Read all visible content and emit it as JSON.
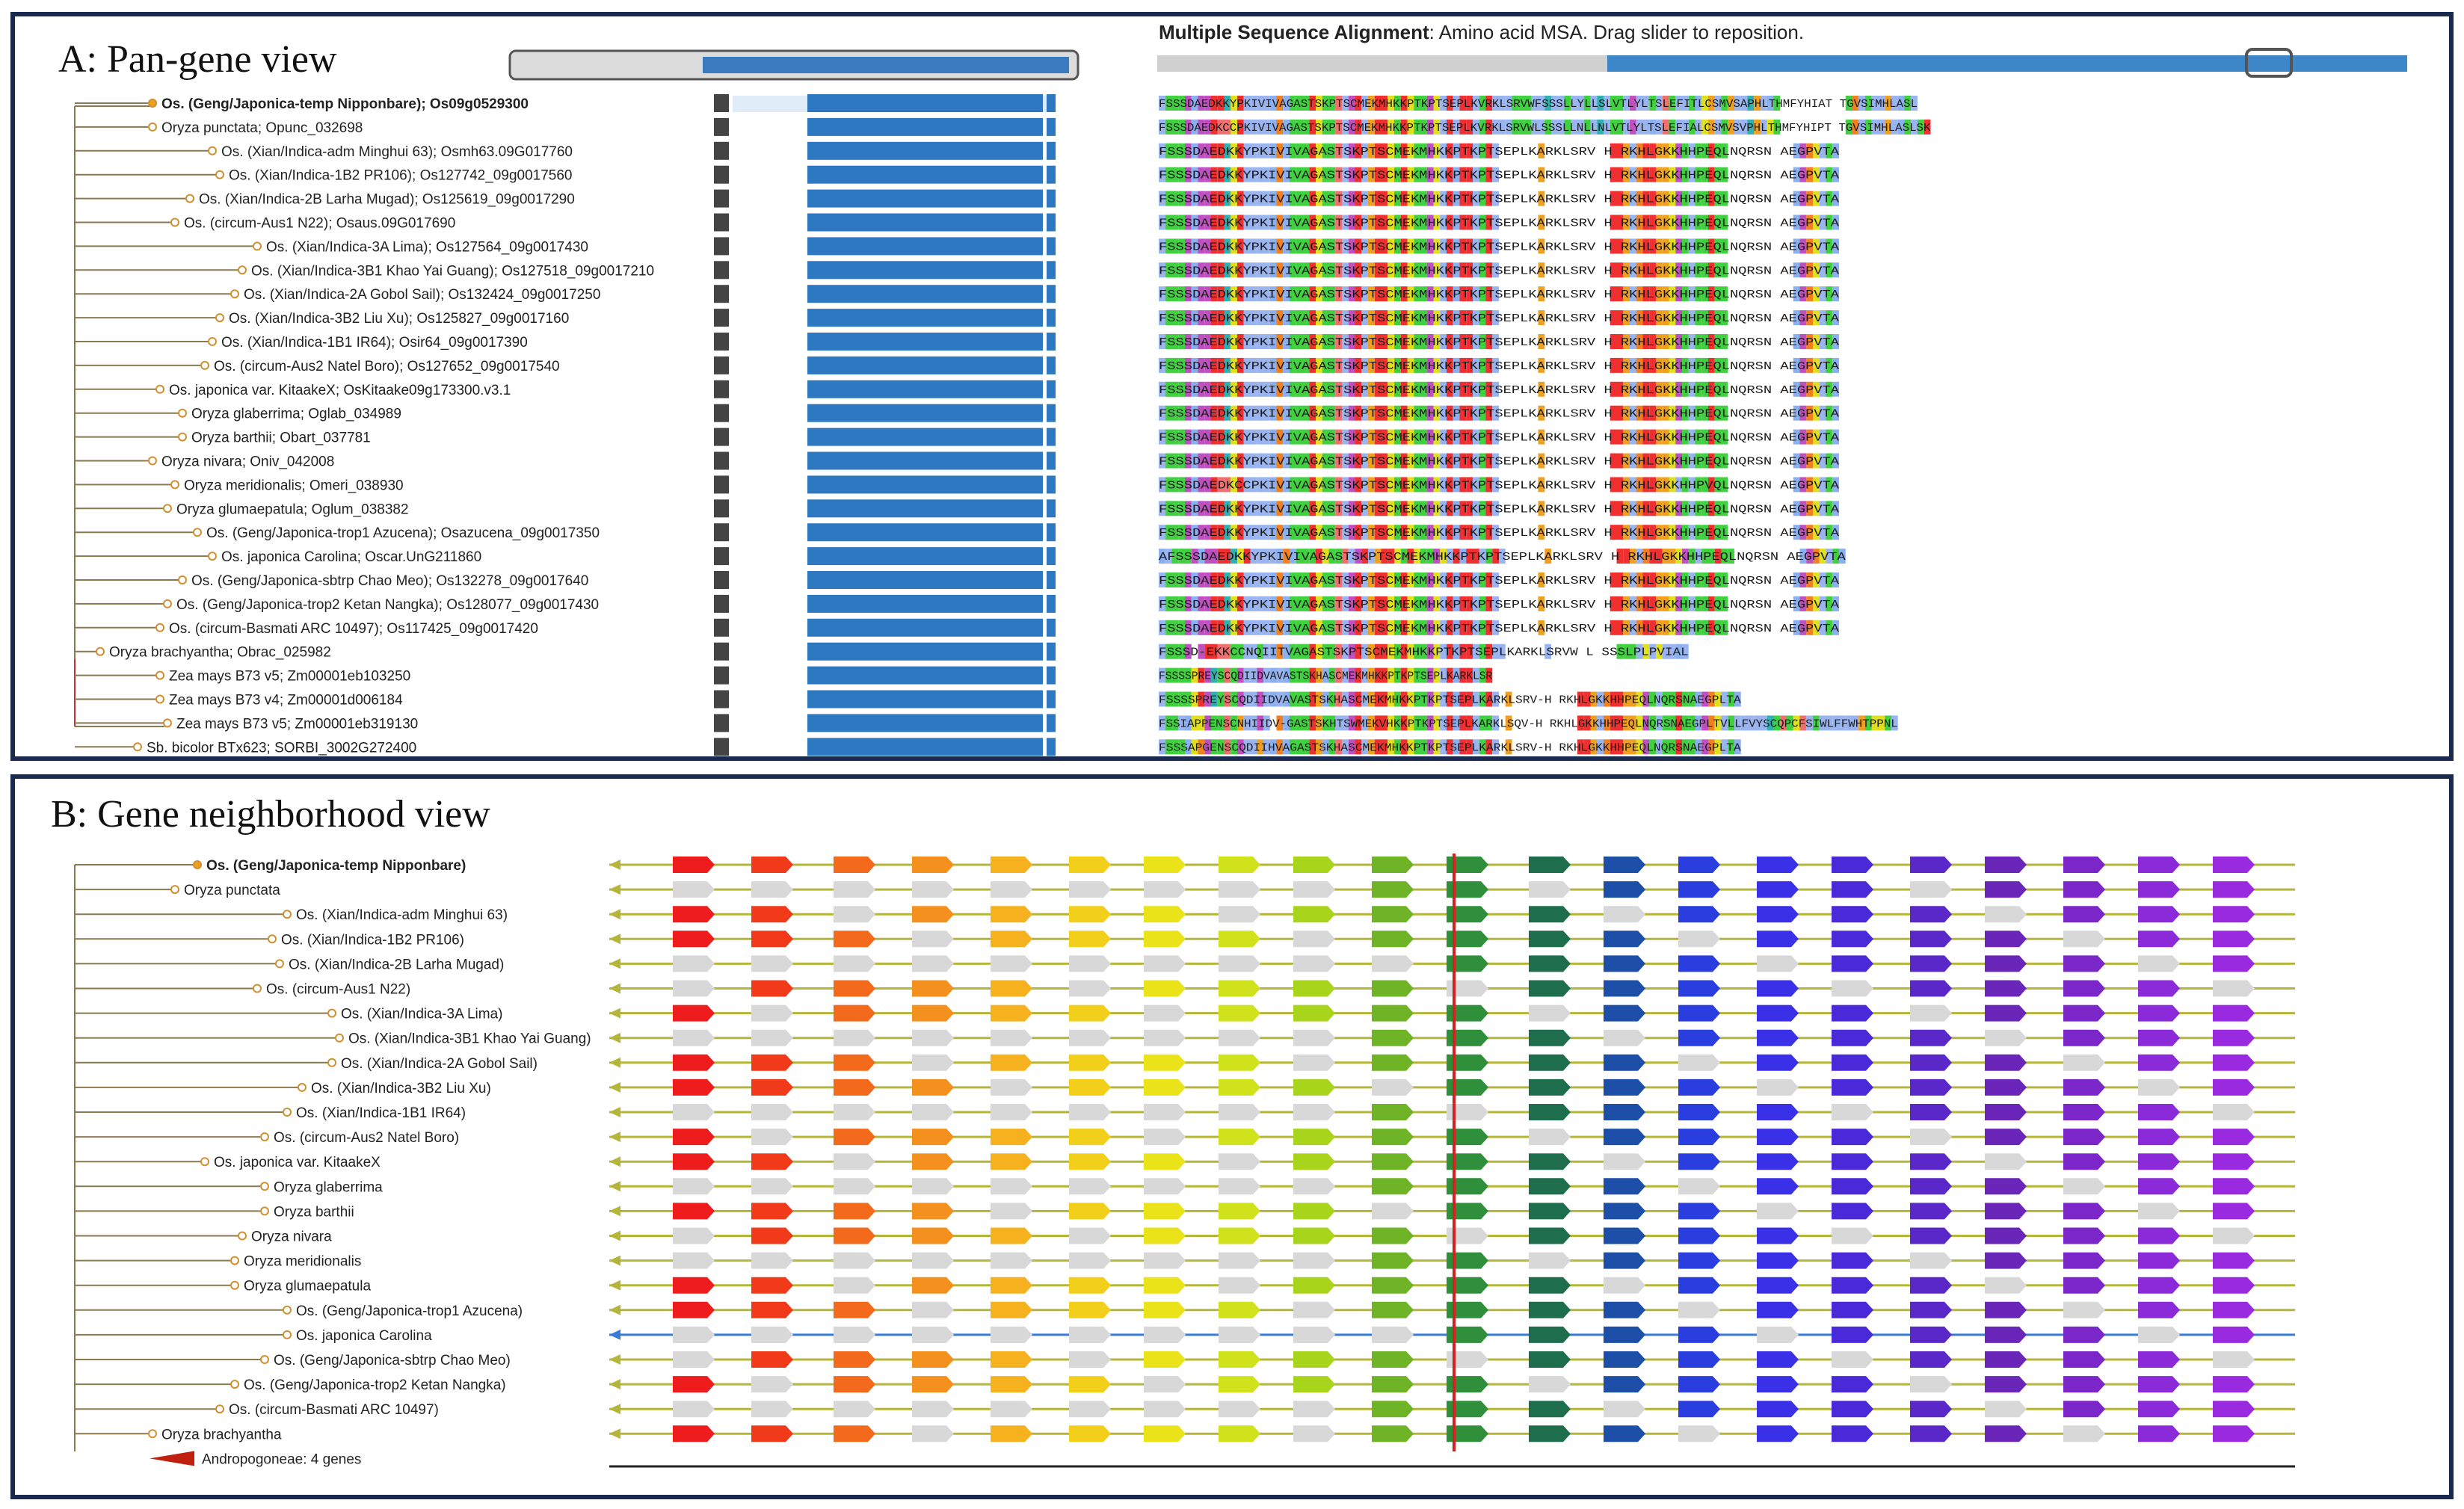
{
  "panel_a": {
    "title": "A: Pan-gene view",
    "msa_title": "Multiple Sequence Alignment",
    "msa_subtitle": ": Amino acid MSA. Drag slider to reposition.",
    "leaves": [
      "Os. (Geng/Japonica-temp Nipponbare); Os09g0529300",
      "Oryza punctata; Opunc_032698",
      "Os. (Xian/Indica-adm Minghui 63); Osmh63.09G017760",
      "Os. (Xian/Indica-1B2 PR106); Os127742_09g0017560",
      "Os. (Xian/Indica-2B Larha Mugad); Os125619_09g0017290",
      "Os. (circum-Aus1 N22); Osaus.09G017690",
      "Os. (Xian/Indica-3A Lima); Os127564_09g0017430",
      "Os. (Xian/Indica-3B1 Khao Yai Guang); Os127518_09g0017210",
      "Os. (Xian/Indica-2A Gobol Sail); Os132424_09g0017250",
      "Os. (Xian/Indica-3B2 Liu Xu); Os125827_09g0017160",
      "Os. (Xian/Indica-1B1 IR64); Osir64_09g0017390",
      "Os. (circum-Aus2 Natel Boro); Os127652_09g0017540",
      "Os. japonica var. KitaakeX; OsKitaake09g173300.v3.1",
      "Oryza glaberrima; Oglab_034989",
      "Oryza barthii; Obart_037781",
      "Oryza nivara; Oniv_042008",
      "Oryza meridionalis; Omeri_038930",
      "Oryza glumaepatula; Oglum_038382",
      "Os. (Geng/Japonica-trop1 Azucena); Osazucena_09g0017350",
      "Os. japonica Carolina; Oscar.UnG211860",
      "Os. (Geng/Japonica-sbtrp Chao Meo); Os132278_09g0017640",
      "Os. (Geng/Japonica-trop2 Ketan Nangka); Os128077_09g0017430",
      "Os. (circum-Basmati ARC 10497); Os117425_09g0017420",
      "Oryza brachyantha; Obrac_025982",
      "Zea mays B73 v5; Zm00001eb103250",
      "Zea mays B73 v4; Zm00001d006184",
      "Zea mays B73 v5; Zm00001eb319130",
      "Sb. bicolor BTx623; SORBI_3002G272400"
    ],
    "msa_rows": [
      "FSSSDAEDKKYPKIVIVAGASTSKPTSCMEKMHKKPTKPTSEPLKVRKLSRVWFSSSLLYLLSLVTLYLTSLEFITLCSMVSAPHLTHMFYHIAT          TGVSIMHLASL",
      "FSSSDAEDKCCPKIVIVAGASTSKPTSCMEKMHKKPTKPTSEPLKVRKLSRVWLSSSLLNLLNLVTLYLTSLEFIALCSMVSVPHLTHMFYHIPT          TGVSIMHLASLSK",
      "FSSSDAEDKKYPKIVIVAGASTSKPTSCMEKMHKKPTKPTSEPLKARKLSRV      H          RKHLGKKHHPEQLNQRSN          AEGPVTA",
      "FSSSDAEDKKYPKIVIVAGASTSKPTSCMEKMHKKPTKPTSEPLKARKLSRV      H          RKHLGKKHHPEQLNQRSN          AEGPVTA",
      "FSSSDAEDKKYPKIVIVAGASTSKPTSCMEKMHKKPTKPTSEPLKARKLSRV      H          RKHLGKKHHPEQLNQRSN          AEGPVTA",
      "FSSSDAEDKKYPKIVIVAGASTSKPTSCMEKMHKKPTKPTSEPLKARKLSRV      H          RKHLGKKHHPEQLNQRSN          AEGPVTA",
      "FSSSDAEDKKYPKIVIVAGASTSKPTSCMEKMHKKPTKPTSEPLKARKLSRV      H          RKHLGKKHHPEQLNQRSN          AEGPVTA",
      "FSSSDAEDKKYPKIVIVAGASTSKPTSCMEKMHKKPTKPTSEPLKARKLSRV      H          RKHLGKKHHPEQLNQRSN          AEGPVTA",
      "FSSSDAEDKKYPKIVIVAGASTSKPTSCMEKMHKKPTKPTSEPLKARKLSRV      H          RKHLGKKHHPEQLNQRSN          AEGPVTA",
      "FSSSDAEDKKYPKIVIVAGASTSKPTSCMEKMHKKPTKPTSEPLKARKLSRV      H          RKHLGKKHHPEQLNQRSN          AEGPVTA",
      "FSSSDAEDKKYPKIVIVAGASTSKPTSCMEKMHKKPTKPTSEPLKARKLSRV      H          RKHLGKKHHPEQLNQRSN          AEGPVTA",
      "FSSSDAEDKKYPKIVIVAGASTSKPTSCMEKMHKKPTKPTSEPLKARKLSRV      H          RKHLGKKHHPEQLNQRSN          AEGPVTA",
      "FSSSDAEDKKYPKIVIVAGASTSKPTSCMEKMHKKPTKPTSEPLKARKLSRV      H          RKHLGKKHHPEQLNQRSN          AEGPVTA",
      "FSSSDAEDKKYPKIVIVAGASTSKPTSCMEKMHKKPTKPTSEPLKARKLSRV      H          RKHLGKKHHPEQLNQRSN          AEGPVTA",
      "FSSSDAEDKKYPKIVIVAGASTSKPTSCMEKMHKKPTKPTSEPLKARKLSRV      H          RKHLGKKHHPEQLNQRSN          AEGPVTA",
      "FSSSDAEDKKYPKIVIVAGASTSKPTSCMEKMHKKPTKPTSEPLKARKLSRV      H          RKHLGKKHHPEQLNQRSN          AEGPVTA",
      "FSSSDAEDKCCPKIVIVAGASTSKPTSCMEKMHKKPTKPTSEPLKARKLSRV      H          RKHLGKKHHPVQLNQRSN          AEGPVTA",
      "FSSSDAEDKKYPKIVIVAGASTSKPTSCMEKMHKKPTKPTSEPLKARKLSRV      H          RKHLGKKHHPEQLNQRSN          AEGPVTA",
      "FSSSDAEDKKYPKIVIVAGASTSKPTSCMEKMHKKPTKPTSEPLKARKLSRV      H          RKHLGKKHHPEQLNQRSN          AEGPVTA",
      "AFSSSDAEDKKYPKIVIVAGASTSKPTSCMEKMHKKPTKPTSEPLKARKLSRV      H          RKHLGKKHHPEQLNQRSN          AEGPVTA",
      "FSSSDAEDKKYPKIVIVAGASTSKPTSCMEKMHKKPTKPTSEPLKARKLSRV      H          RKHLGKKHHPEQLNQRSN          AEGPVTA",
      "FSSSDAEDKKYPKIVIVAGASTSKPTSCMEKMHKKPTKPTSEPLKARKLSRV      H          RKHLGKKHHPEQLNQRSN          AEGPVTA",
      "FSSSDAEDKKYPKIVIVAGASTSKPTSCMEKMHKKPTKPTSEPLKARKLSRV      H          RKHLGKKHHPEQLNQRSN          AEGPVTA",
      "FSSSD-EKKCCNQIITVAGASTSKPTSCMEKMHKKPTKPTSEPLKARKLSRVW      L          SSSLPLPVIAL",
      "FSSSSPREYSCQDIIDVAVASTSKHASCMEKMHKKPTKPTSEPLKARKLSR",
      "FSSSSPREYSCQDIIDVAVASTSKHASCMEKMHKKPTKPTSEPLKARKLSRV-H          RKHLGKKHHPEQLNQRSNAEGPLTA",
      "FSSIAPPENSCNHIIDV-GASTSKHTSWMEKVHKKPTKPTSEPLKARKLSQV-H          RKHLGKKHHPEQLNQRSNAEGPLTVLLFVYSCQPCFSIWLFFWHTPPNL",
      "FSSSAPGENSCQDIIHVAGASTSKHASCMEKMHKKPTKPTSEPLKARKLSRV-H          RKHLGKKHHPEQLNQRSNAEGPLTA"
    ]
  },
  "panel_b": {
    "title": "B: Gene neighborhood view",
    "leaves": [
      "Os. (Geng/Japonica-temp Nipponbare)",
      "Oryza punctata",
      "Os. (Xian/Indica-adm Minghui 63)",
      "Os. (Xian/Indica-1B2 PR106)",
      "Os. (Xian/Indica-2B Larha Mugad)",
      "Os. (circum-Aus1 N22)",
      "Os. (Xian/Indica-3A Lima)",
      "Os. (Xian/Indica-3B1 Khao Yai Guang)",
      "Os. (Xian/Indica-2A Gobol Sail)",
      "Os. (Xian/Indica-3B2 Liu Xu)",
      "Os. (Xian/Indica-1B1 IR64)",
      "Os. (circum-Aus2 Natel Boro)",
      "Os. japonica var. KitaakeX",
      "Oryza glaberrima",
      "Oryza barthii",
      "Oryza nivara",
      "Oryza meridionalis",
      "Oryza glumaepatula",
      "Os. (Geng/Japonica-trop1 Azucena)",
      "Os. japonica Carolina",
      "Os. (Geng/Japonica-sbtrp Chao Meo)",
      "Os. (Geng/Japonica-trop2 Ketan Nangka)",
      "Os. (circum-Basmati ARC 10497)",
      "Oryza brachyantha",
      "Andropogoneae: 4 genes"
    ],
    "gene_colors": [
      "#ee1c1c",
      "#f03a1a",
      "#f36a1c",
      "#f4901e",
      "#f6b21e",
      "#f2cf1a",
      "#eae31a",
      "#cfe21c",
      "#a8d41c",
      "#6fb426",
      "#2f8f3a",
      "#1e6e4e",
      "#1d4fa8",
      "#2a3ee0",
      "#3a30e8",
      "#4a2ad8",
      "#5a28c8",
      "#6a26b8",
      "#7a26c8",
      "#8a2ad8",
      "#9a2ae0"
    ],
    "neutral_color": "#d8d8d8",
    "track_color": "#b5b53a",
    "highlight_track_color": "#3a7bd5",
    "marker_color": "#d42020"
  }
}
